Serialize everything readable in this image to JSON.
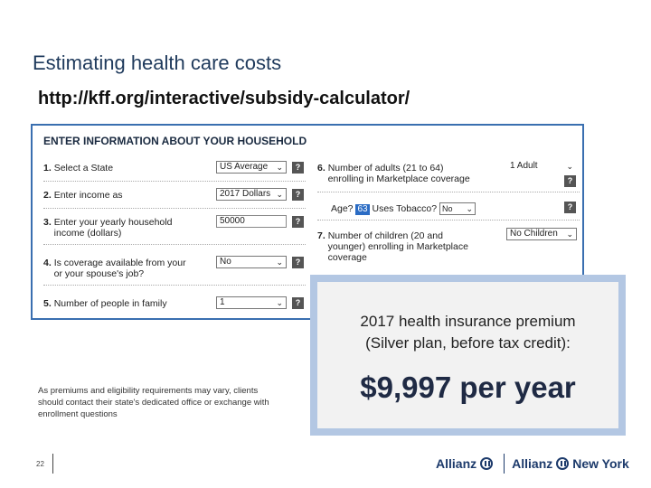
{
  "slide": {
    "title": "Estimating health care costs",
    "url": "http://kff.org/interactive/subsidy-calculator/",
    "page_number": "22"
  },
  "form": {
    "heading": "ENTER INFORMATION ABOUT YOUR HOUSEHOLD",
    "help_glyph": "?",
    "chevron": "⌄",
    "q1": {
      "num": "1.",
      "label": "Select a State",
      "value": "US Average"
    },
    "q2": {
      "num": "2.",
      "label": "Enter income as",
      "value": "2017 Dollars"
    },
    "q3": {
      "num": "3.",
      "label_line1": "Enter your yearly household",
      "label_line2": "income (dollars)",
      "value": "50000"
    },
    "q4": {
      "num": "4.",
      "label_line1": "Is coverage available from your",
      "label_line2": "or your spouse's job?",
      "value": "No"
    },
    "q5": {
      "num": "5.",
      "label": "Number of people in family",
      "value": "1"
    },
    "q6": {
      "num": "6.",
      "label_line1": "Number of adults (21 to 64)",
      "label_line2": "enrolling in Marketplace coverage",
      "value": "1 Adult"
    },
    "age": {
      "label": "Age?",
      "value": "63",
      "tobacco_label": "Uses Tobacco?",
      "tobacco_value": "No"
    },
    "q7": {
      "num": "7.",
      "label_line1": "Number of children (20 and",
      "label_line2": "younger) enrolling in Marketplace",
      "label_line3": "coverage",
      "value": "No Children"
    }
  },
  "callout": {
    "line1": "2017 health insurance premium",
    "line2": "(Silver plan, before tax credit):",
    "amount": "$9,997 per year"
  },
  "disclaimer": "As premiums and eligibility requirements may vary, clients should contact their state's dedicated office or exchange with enrollment questions",
  "footer": {
    "logo1": "Allianz",
    "logo2": "Allianz",
    "logo2_suffix": "New York",
    "brand_color": "#1c3a6b"
  }
}
